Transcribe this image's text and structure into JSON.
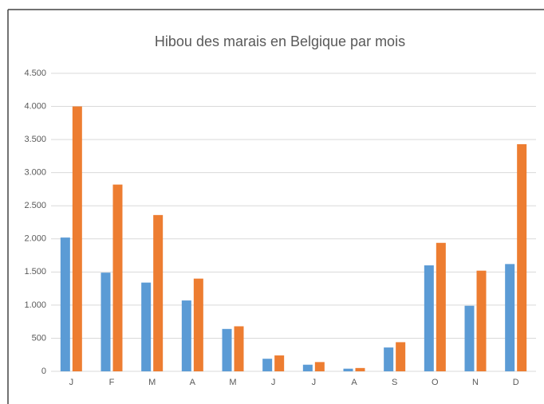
{
  "chart_data": {
    "type": "bar",
    "title": "Hibou des marais en Belgique par mois",
    "categories": [
      "J",
      "F",
      "M",
      "A",
      "M",
      "J",
      "J",
      "A",
      "S",
      "O",
      "N",
      "D"
    ],
    "series": [
      {
        "color": "#5b9bd5",
        "values": [
          2020,
          1490,
          1340,
          1070,
          640,
          190,
          100,
          40,
          360,
          1600,
          990,
          1620
        ]
      },
      {
        "color": "#ed7d31",
        "values": [
          4000,
          2820,
          2360,
          1400,
          680,
          240,
          140,
          50,
          440,
          1940,
          1520,
          3430
        ]
      }
    ],
    "ylim": [
      0,
      4500
    ],
    "yticks": [
      0,
      500,
      {
        "value": 1000,
        "label": "1.000"
      },
      {
        "value": 1500,
        "label": "1.500"
      },
      {
        "value": 2000,
        "label": "2.000"
      },
      {
        "value": 2500,
        "label": "2.500"
      },
      {
        "value": 3000,
        "label": "3.000"
      },
      {
        "value": 3500,
        "label": "3.500"
      },
      {
        "value": 4000,
        "label": "4.000"
      },
      {
        "value": 4500,
        "label": "4.500"
      }
    ],
    "grid": true
  }
}
